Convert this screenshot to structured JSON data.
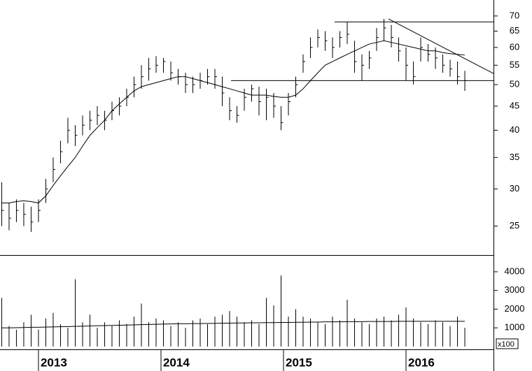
{
  "chart_data": {
    "type": "ohlc",
    "log_scale": true,
    "color": "#000000",
    "xlim": [
      2012.686,
      2016.714
    ],
    "xticks": [
      2013,
      2014,
      2015,
      2016
    ],
    "ylim": [
      21.7,
      75.7
    ],
    "yticks": [
      25,
      30,
      35,
      40,
      45,
      50,
      55,
      60,
      65,
      70
    ],
    "x": [
      2012.7,
      2012.76,
      2012.82,
      2012.88,
      2012.94,
      2013.0,
      2013.06,
      2013.12,
      2013.18,
      2013.24,
      2013.3,
      2013.36,
      2013.42,
      2013.48,
      2013.54,
      2013.6,
      2013.66,
      2013.72,
      2013.78,
      2013.84,
      2013.9,
      2013.96,
      2014.02,
      2014.08,
      2014.14,
      2014.2,
      2014.26,
      2014.32,
      2014.38,
      2014.44,
      2014.5,
      2014.56,
      2014.62,
      2014.68,
      2014.74,
      2014.8,
      2014.86,
      2014.92,
      2014.98,
      2015.04,
      2015.1,
      2015.16,
      2015.22,
      2015.28,
      2015.34,
      2015.4,
      2015.46,
      2015.52,
      2015.58,
      2015.64,
      2015.7,
      2015.76,
      2015.82,
      2015.88,
      2015.94,
      2016.0,
      2016.06,
      2016.12,
      2016.18,
      2016.24,
      2016.3,
      2016.36,
      2016.42,
      2016.48
    ],
    "high": [
      31,
      28,
      28.5,
      28,
      27.5,
      28.5,
      31.5,
      35,
      38,
      42.5,
      41,
      43,
      44,
      45,
      44,
      46,
      47,
      49,
      52,
      55,
      57,
      57.5,
      57,
      56,
      54,
      53,
      52,
      53,
      54,
      54,
      52,
      47,
      45,
      49,
      50,
      49.5,
      49,
      48,
      45,
      48,
      52,
      58,
      63,
      65.5,
      65,
      63,
      65,
      68,
      62,
      58,
      59,
      66,
      69,
      67,
      63,
      60,
      56,
      63,
      61,
      60,
      58,
      56.5,
      56,
      53.5
    ],
    "low": [
      25,
      24.5,
      25.5,
      25,
      24.3,
      25.5,
      28,
      31,
      34,
      37.5,
      37,
      39,
      40,
      41,
      40,
      42,
      43,
      45,
      47,
      49,
      51,
      53,
      53,
      51,
      50,
      48,
      48,
      49,
      50,
      49,
      45,
      42,
      41.5,
      44,
      46,
      43,
      42,
      42.5,
      40,
      43,
      47,
      53,
      57,
      60,
      59,
      57,
      60,
      61,
      53,
      51,
      54,
      59,
      62,
      60,
      56,
      51,
      50,
      56,
      56,
      54,
      53,
      52,
      50,
      48.5
    ],
    "close": [
      27,
      26,
      27,
      26.5,
      25.5,
      27,
      30,
      33,
      36,
      40,
      39,
      41,
      42,
      43,
      42,
      44,
      45,
      47,
      50,
      52,
      54,
      55,
      56,
      53,
      52,
      50,
      50,
      51,
      52,
      52,
      48,
      44,
      43,
      47,
      49,
      46,
      47,
      45,
      41.5,
      46,
      50,
      56,
      60,
      63,
      62,
      60,
      63,
      64,
      56,
      55,
      57,
      63,
      66,
      63,
      59,
      55,
      52,
      60,
      58,
      57,
      55,
      54,
      52,
      51
    ],
    "moving_average": [
      28,
      28,
      28.2,
      28.3,
      28.2,
      28,
      29,
      30.5,
      32,
      33.5,
      35,
      37,
      39,
      40.5,
      42,
      44,
      45.5,
      47,
      48.5,
      49.5,
      50,
      50.5,
      51,
      51.5,
      52,
      52,
      51.5,
      51,
      50.5,
      50,
      49.5,
      49,
      48.5,
      48,
      47.5,
      47.5,
      47.5,
      47.2,
      47,
      47,
      47.5,
      49,
      51,
      53,
      55,
      56,
      57,
      58,
      59,
      60,
      61,
      61.5,
      62,
      61.5,
      61,
      60.5,
      60,
      59.5,
      59,
      59,
      58.5,
      58.2,
      58,
      57.8
    ],
    "trend_lines": [
      {
        "x": [
          2015.417,
          2016.714
        ],
        "y": [
          68,
          68
        ]
      },
      {
        "x": [
          2014.572,
          2016.714
        ],
        "y": [
          51,
          51
        ]
      },
      {
        "x": [
          2015.857,
          2016.714
        ],
        "y": [
          69,
          52.8
        ]
      }
    ],
    "volume": [
      2600,
      1100,
      900,
      1300,
      1700,
      900,
      1500,
      1800,
      1200,
      1000,
      3600,
      1300,
      1700,
      1000,
      1300,
      1100,
      1400,
      1200,
      1600,
      2300,
      1300,
      1500,
      1400,
      1100,
      1300,
      1000,
      1400,
      1500,
      1200,
      1600,
      1700,
      1900,
      1600,
      1300,
      1400,
      1200,
      2600,
      2200,
      3800,
      1600,
      2000,
      1600,
      1500,
      1300,
      1200,
      1600,
      1400,
      2500,
      1500,
      1300,
      1200,
      1500,
      1600,
      1400,
      1700,
      2100,
      1500,
      1300,
      1200,
      1400,
      1300,
      1100,
      1600,
      1000
    ],
    "volume_ma": [
      1000,
      1000,
      1010,
      1020,
      1030,
      1030,
      1040,
      1050,
      1060,
      1070,
      1080,
      1090,
      1100,
      1110,
      1120,
      1130,
      1140,
      1150,
      1160,
      1170,
      1180,
      1190,
      1200,
      1210,
      1220,
      1220,
      1230,
      1230,
      1240,
      1240,
      1250,
      1250,
      1260,
      1260,
      1270,
      1270,
      1280,
      1280,
      1290,
      1290,
      1300,
      1300,
      1310,
      1310,
      1320,
      1320,
      1320,
      1330,
      1330,
      1330,
      1340,
      1340,
      1340,
      1340,
      1350,
      1350,
      1350,
      1350,
      1350,
      1350,
      1350,
      1350,
      1350,
      1350
    ],
    "volume_ylim": [
      0,
      4820
    ],
    "volume_yticks": [
      1000,
      2000,
      3000,
      4000
    ],
    "volume_unit": "x100"
  }
}
